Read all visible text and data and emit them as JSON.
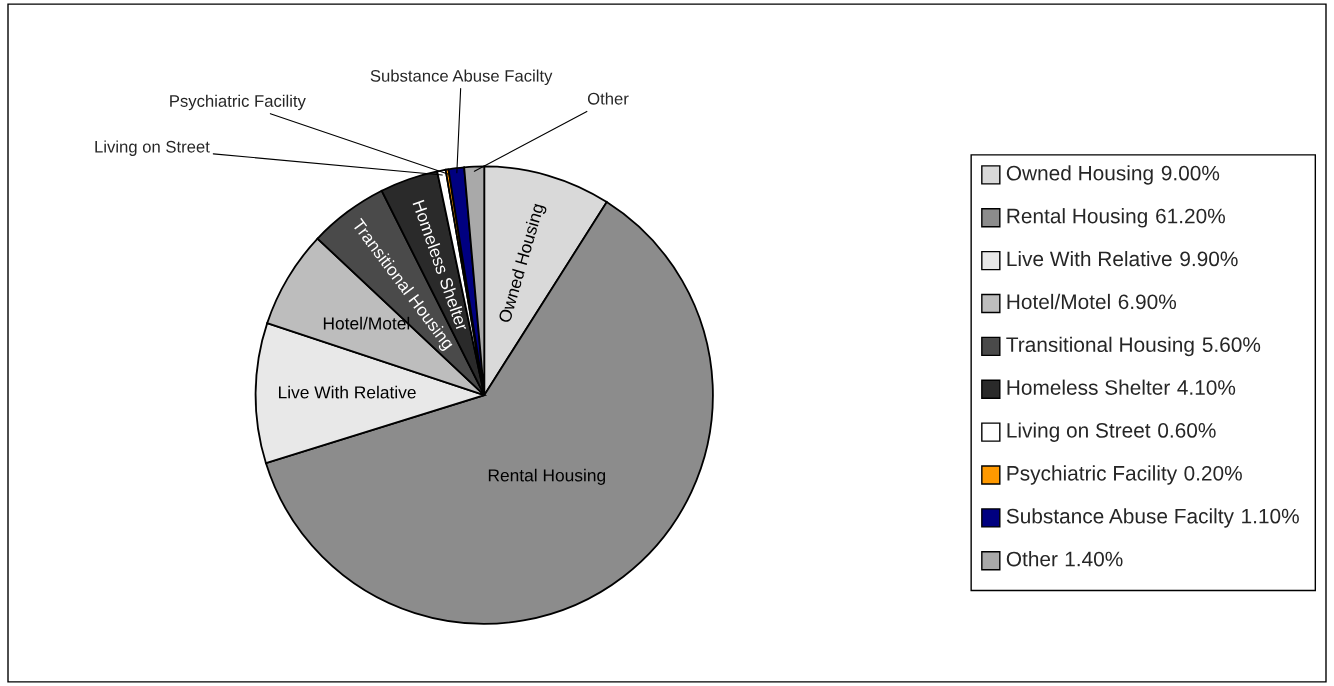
{
  "chart_data": {
    "type": "pie",
    "categories": [
      "Owned Housing",
      "Rental Housing",
      "Live With Relative",
      "Hotel/Motel",
      "Transitional Housing",
      "Homeless Shelter",
      "Living on Street",
      "Psychiatric Facility",
      "Substance Abuse Facilty",
      "Other"
    ],
    "values": [
      9.0,
      61.2,
      9.9,
      6.9,
      5.6,
      4.1,
      0.6,
      0.2,
      1.1,
      1.4
    ],
    "value_labels": [
      "9.00%",
      "61.20%",
      "9.90%",
      "6.90%",
      "5.60%",
      "4.10%",
      "0.60%",
      "0.20%",
      "1.10%",
      "1.40%"
    ],
    "colors": [
      "#d9d9d9",
      "#8c8c8c",
      "#e8e8e8",
      "#bdbdbd",
      "#4a4a4a",
      "#2a2a2a",
      "#ffffff",
      "#ff9900",
      "#000080",
      "#a9a9a9"
    ],
    "legend": "right"
  }
}
